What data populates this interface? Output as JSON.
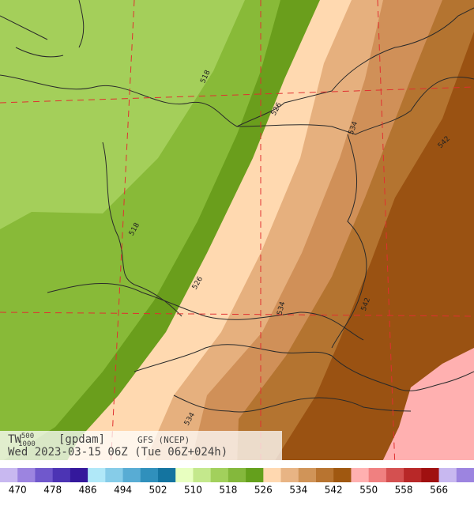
{
  "header": {
    "title_main": "TW",
    "title_sup": "500",
    "title_sub": "1000",
    "unit": "[gpdam]",
    "model": "GFS (NCEP)",
    "datetime": "Wed 2023-03-15 06Z (Tue 06Z+024h)"
  },
  "contour_labels": [
    518,
    518,
    526,
    526,
    534,
    534,
    534,
    542,
    542
  ],
  "colorbar": {
    "labels": [
      470,
      478,
      486,
      494,
      502,
      510,
      518,
      526,
      534,
      542,
      550,
      558,
      566
    ],
    "colors": [
      "#c8b8f0",
      "#9c84e0",
      "#7058cc",
      "#4c34b4",
      "#34189c",
      "#b0e8f8",
      "#86cce8",
      "#58acd4",
      "#3090bc",
      "#1474a0",
      "#e8ffc0",
      "#c4e88c",
      "#a2d05c",
      "#84b83c",
      "#64a01c",
      "#ffd8b0",
      "#e8b484",
      "#d09458",
      "#b87430",
      "#a05810",
      "#ffb0b0",
      "#f08080",
      "#d45050",
      "#b82828",
      "#a01010",
      "#c8b8f0",
      "#9c84e0"
    ]
  }
}
